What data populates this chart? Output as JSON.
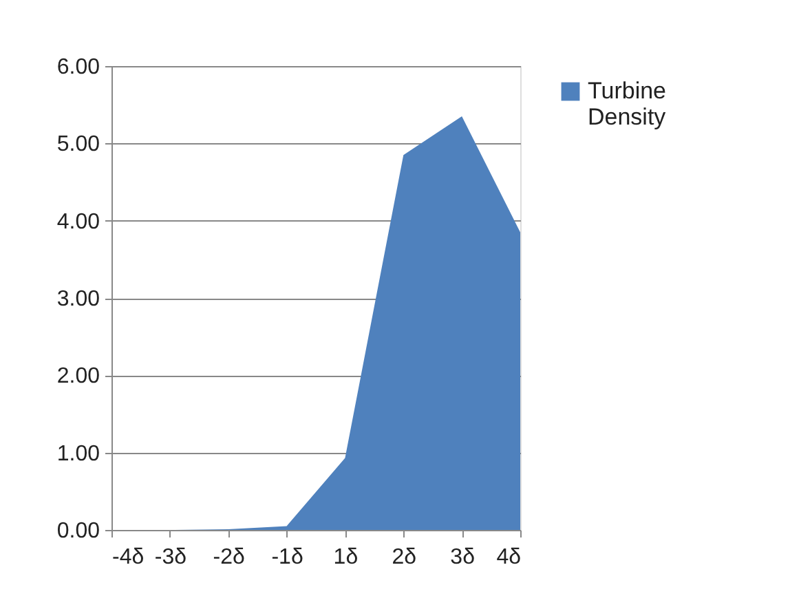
{
  "chart_data": {
    "type": "area",
    "categories": [
      "-4δ",
      "-3δ",
      "-2δ",
      "-1δ",
      "1δ",
      "2δ",
      "3δ",
      "4δ"
    ],
    "series": [
      {
        "name": "Turbine Density",
        "color": "#4f81bd",
        "values": [
          0,
          0,
          0.01,
          0.05,
          0.93,
          4.85,
          5.35,
          3.85
        ]
      }
    ],
    "ylim": [
      0,
      6
    ],
    "yticks": [
      {
        "value": 0,
        "label": "0.00"
      },
      {
        "value": 1,
        "label": "1.00"
      },
      {
        "value": 2,
        "label": "2.00"
      },
      {
        "value": 3,
        "label": "3.00"
      },
      {
        "value": 4,
        "label": "4.00"
      },
      {
        "value": 5,
        "label": "5.00"
      },
      {
        "value": 6,
        "label": "6.00"
      }
    ],
    "grid": "y",
    "legend": "right"
  }
}
